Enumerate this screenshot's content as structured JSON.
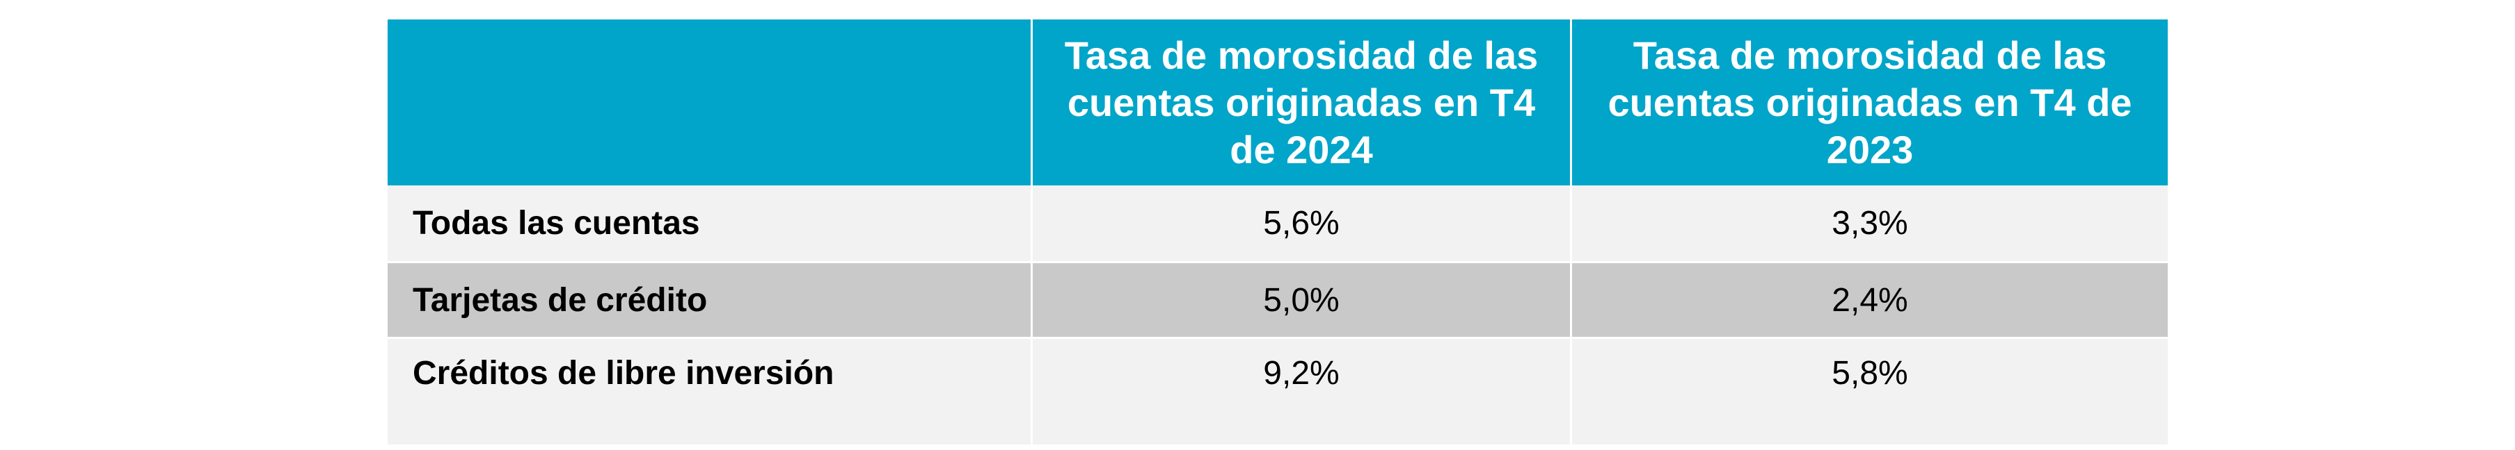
{
  "table": {
    "header": [
      "",
      "Tasa de morosidad de las cuentas originadas en T4 de 2024",
      "Tasa de morosidad de las cuentas originadas en T4 de 2023"
    ],
    "rows": [
      {
        "label": "Todas las cuentas",
        "v2024": "5,6%",
        "v2023": "3,3%"
      },
      {
        "label": "Tarjetas de crédito",
        "v2024": "5,0%",
        "v2023": "2,4%"
      },
      {
        "label": "Créditos de libre inversión",
        "v2024": "9,2%",
        "v2023": "5,8%"
      }
    ]
  },
  "colors": {
    "header_bg": "#00A5C9",
    "row_light": "#F2F2F2",
    "row_dark": "#C9C9C9"
  }
}
